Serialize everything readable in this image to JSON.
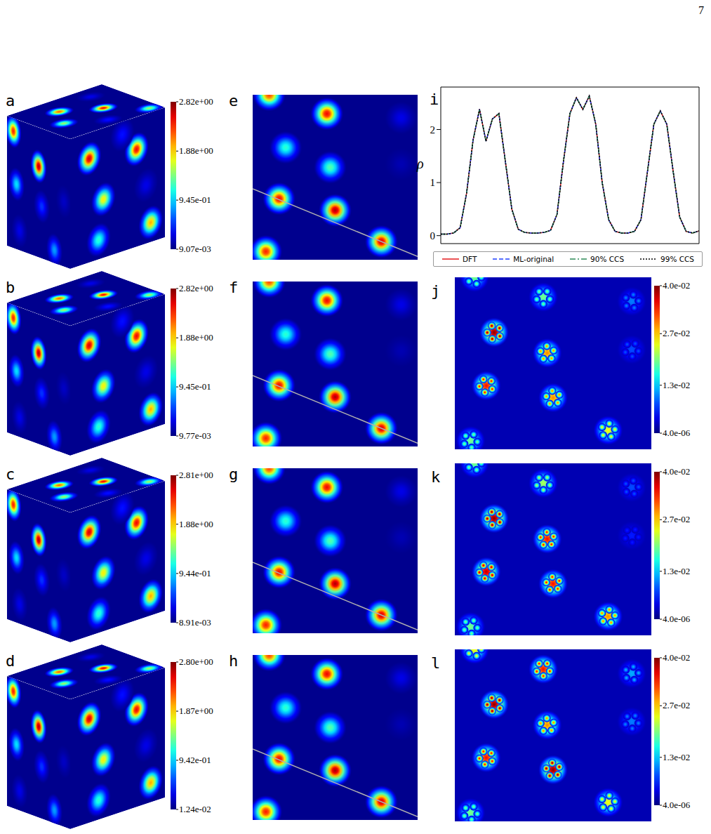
{
  "page_number": "7",
  "cube_faces": {
    "background": 0.05,
    "top": [
      [
        0.3,
        0.35,
        2.2
      ],
      [
        0.55,
        0.65,
        2.5
      ],
      [
        0.6,
        0.2,
        1.5
      ],
      [
        0.85,
        0.5,
        0.4
      ],
      [
        0.2,
        0.75,
        0.3
      ],
      [
        0.9,
        0.9,
        1.5
      ]
    ],
    "left": [
      [
        0.1,
        0.1,
        2.4
      ],
      [
        0.5,
        0.3,
        2.7
      ],
      [
        0.15,
        0.5,
        1.0
      ],
      [
        0.55,
        0.6,
        0.5
      ],
      [
        0.2,
        0.85,
        0.3
      ],
      [
        0.75,
        0.9,
        0.8
      ],
      [
        0.9,
        0.5,
        0.2
      ]
    ],
    "right": [
      [
        0.2,
        0.2,
        2.6
      ],
      [
        0.7,
        0.25,
        2.5
      ],
      [
        0.35,
        0.55,
        1.8
      ],
      [
        0.8,
        0.55,
        0.3
      ],
      [
        0.3,
        0.85,
        1.2
      ],
      [
        0.85,
        0.85,
        2.0
      ],
      [
        0.55,
        0.1,
        0.4
      ]
    ]
  },
  "slice_atoms": {
    "background": 0.05,
    "atoms": [
      [
        0.1,
        0.0,
        2.3
      ],
      [
        0.45,
        0.115,
        2.5
      ],
      [
        0.2,
        0.32,
        1.2
      ],
      [
        0.47,
        0.44,
        1.3
      ],
      [
        0.9,
        0.14,
        0.3
      ],
      [
        0.9,
        0.42,
        0.15
      ],
      [
        0.16,
        0.63,
        2.5
      ],
      [
        0.5,
        0.7,
        2.7
      ],
      [
        0.78,
        0.89,
        2.6
      ],
      [
        0.08,
        0.95,
        2.4
      ]
    ]
  },
  "cubes": [
    {
      "label": "a",
      "colorbar": {
        "range": [
          0.00907,
          2.82
        ],
        "ticks": [
          {
            "value": 2.82,
            "label": "2.82e+00"
          },
          {
            "value": 1.88,
            "label": "1.88e+00"
          },
          {
            "value": 0.945,
            "label": "9.45e-01"
          },
          {
            "value": 0.00907,
            "label": "9.07e-03"
          }
        ]
      }
    },
    {
      "label": "b",
      "colorbar": {
        "range": [
          0.00977,
          2.82
        ],
        "ticks": [
          {
            "value": 2.82,
            "label": "2.82e+00"
          },
          {
            "value": 1.88,
            "label": "1.88e+00"
          },
          {
            "value": 0.945,
            "label": "9.45e-01"
          },
          {
            "value": 0.00977,
            "label": "9.77e-03"
          }
        ]
      }
    },
    {
      "label": "c",
      "colorbar": {
        "range": [
          0.00891,
          2.81
        ],
        "ticks": [
          {
            "value": 2.81,
            "label": "2.81e+00"
          },
          {
            "value": 1.88,
            "label": "1.88e+00"
          },
          {
            "value": 0.944,
            "label": "9.44e-01"
          },
          {
            "value": 0.00891,
            "label": "8.91e-03"
          }
        ]
      }
    },
    {
      "label": "d",
      "colorbar": {
        "range": [
          0.0124,
          2.8
        ],
        "ticks": [
          {
            "value": 2.8,
            "label": "2.80e+00"
          },
          {
            "value": 1.87,
            "label": "1.87e+00"
          },
          {
            "value": 0.942,
            "label": "9.42e-01"
          },
          {
            "value": 0.0124,
            "label": "1.24e-02"
          }
        ]
      }
    }
  ],
  "slices": [
    {
      "label": "e"
    },
    {
      "label": "f"
    },
    {
      "label": "g"
    },
    {
      "label": "h"
    }
  ],
  "error_maps": {
    "background": 0.002,
    "panels": [
      {
        "label": "j",
        "colorbar": {
          "range": [
            4e-06,
            0.04
          ],
          "ticks": [
            {
              "value": 0.04,
              "label": "4.0e-02"
            },
            {
              "value": 0.027,
              "label": "2.7e-02"
            },
            {
              "value": 0.013,
              "label": "1.3e-02"
            },
            {
              "value": 4e-06,
              "label": "4.0e-06"
            }
          ]
        },
        "amplitudes": [
          0.02,
          0.02,
          0.04,
          0.03,
          0.01,
          0.008,
          0.035,
          0.03,
          0.025,
          0.02
        ]
      },
      {
        "label": "k",
        "colorbar": {
          "range": [
            4e-06,
            0.04
          ],
          "ticks": [
            {
              "value": 0.04,
              "label": "4.0e-02"
            },
            {
              "value": 0.027,
              "label": "2.7e-02"
            },
            {
              "value": 0.013,
              "label": "1.3e-02"
            },
            {
              "value": 4e-06,
              "label": "4.0e-06"
            }
          ]
        },
        "amplitudes": [
          0.02,
          0.022,
          0.04,
          0.035,
          0.008,
          0.006,
          0.038,
          0.035,
          0.03,
          0.02
        ]
      },
      {
        "label": "l",
        "colorbar": {
          "range": [
            4e-06,
            0.04
          ],
          "ticks": [
            {
              "value": 0.04,
              "label": "4.0e-02"
            },
            {
              "value": 0.027,
              "label": "2.7e-02"
            },
            {
              "value": 0.013,
              "label": "1.3e-02"
            },
            {
              "value": 4e-06,
              "label": "4.0e-06"
            }
          ]
        },
        "amplitudes": [
          0.025,
          0.035,
          0.04,
          0.03,
          0.012,
          0.01,
          0.035,
          0.04,
          0.025,
          0.02
        ]
      }
    ]
  },
  "chart_data": {
    "label": "i",
    "type": "line",
    "y_label": "ρ",
    "x": [
      0,
      0.025,
      0.05,
      0.075,
      0.1,
      0.125,
      0.15,
      0.175,
      0.2,
      0.225,
      0.25,
      0.275,
      0.3,
      0.325,
      0.35,
      0.375,
      0.4,
      0.425,
      0.45,
      0.475,
      0.5,
      0.525,
      0.55,
      0.575,
      0.6,
      0.625,
      0.65,
      0.675,
      0.7,
      0.725,
      0.75,
      0.775,
      0.8,
      0.825,
      0.85,
      0.875,
      0.9,
      0.925,
      0.95,
      0.975,
      1
    ],
    "xlim": [
      0,
      1
    ],
    "ylim": [
      -0.15,
      2.8
    ],
    "yticks": [
      0,
      1,
      2
    ],
    "tick_labels": "y",
    "legend": "bottom",
    "series": [
      {
        "name": "DFT",
        "color": "#e41a1c",
        "line_style": "solid",
        "values": [
          0.03,
          0.03,
          0.05,
          0.15,
          0.8,
          1.8,
          2.38,
          1.78,
          2.2,
          2.3,
          1.4,
          0.5,
          0.12,
          0.06,
          0.05,
          0.05,
          0.06,
          0.1,
          0.4,
          1.4,
          2.3,
          2.6,
          2.38,
          2.63,
          2.1,
          1.0,
          0.3,
          0.08,
          0.05,
          0.05,
          0.08,
          0.3,
          1.2,
          2.1,
          2.35,
          2.1,
          1.2,
          0.35,
          0.08,
          0.05,
          0.09
        ]
      },
      {
        "name": "ML-original",
        "color": "#1f3fff",
        "line_style": "dashed",
        "values": [
          0.03,
          0.03,
          0.05,
          0.15,
          0.8,
          1.8,
          2.38,
          1.78,
          2.2,
          2.3,
          1.4,
          0.5,
          0.12,
          0.06,
          0.05,
          0.05,
          0.06,
          0.1,
          0.4,
          1.4,
          2.3,
          2.6,
          2.38,
          2.63,
          2.1,
          1.0,
          0.3,
          0.08,
          0.05,
          0.05,
          0.08,
          0.3,
          1.2,
          2.1,
          2.35,
          2.1,
          1.2,
          0.35,
          0.08,
          0.05,
          0.09
        ]
      },
      {
        "name": "90% CCS",
        "color": "#2e8b57",
        "line_style": "dashdot",
        "values": [
          0.03,
          0.03,
          0.05,
          0.15,
          0.8,
          1.8,
          2.38,
          1.78,
          2.2,
          2.3,
          1.4,
          0.5,
          0.12,
          0.06,
          0.05,
          0.05,
          0.06,
          0.1,
          0.4,
          1.4,
          2.3,
          2.6,
          2.38,
          2.63,
          2.1,
          1.0,
          0.3,
          0.08,
          0.05,
          0.05,
          0.08,
          0.3,
          1.2,
          2.1,
          2.35,
          2.1,
          1.2,
          0.35,
          0.08,
          0.05,
          0.09
        ]
      },
      {
        "name": "99% CCS",
        "color": "#000000",
        "line_style": "dotted",
        "values": [
          0.03,
          0.03,
          0.05,
          0.15,
          0.8,
          1.8,
          2.38,
          1.78,
          2.2,
          2.3,
          1.4,
          0.5,
          0.12,
          0.06,
          0.05,
          0.05,
          0.06,
          0.1,
          0.4,
          1.4,
          2.3,
          2.6,
          2.38,
          2.63,
          2.1,
          1.0,
          0.3,
          0.08,
          0.05,
          0.05,
          0.08,
          0.3,
          1.2,
          2.1,
          2.35,
          2.1,
          1.2,
          0.35,
          0.08,
          0.05,
          0.09
        ]
      }
    ]
  }
}
